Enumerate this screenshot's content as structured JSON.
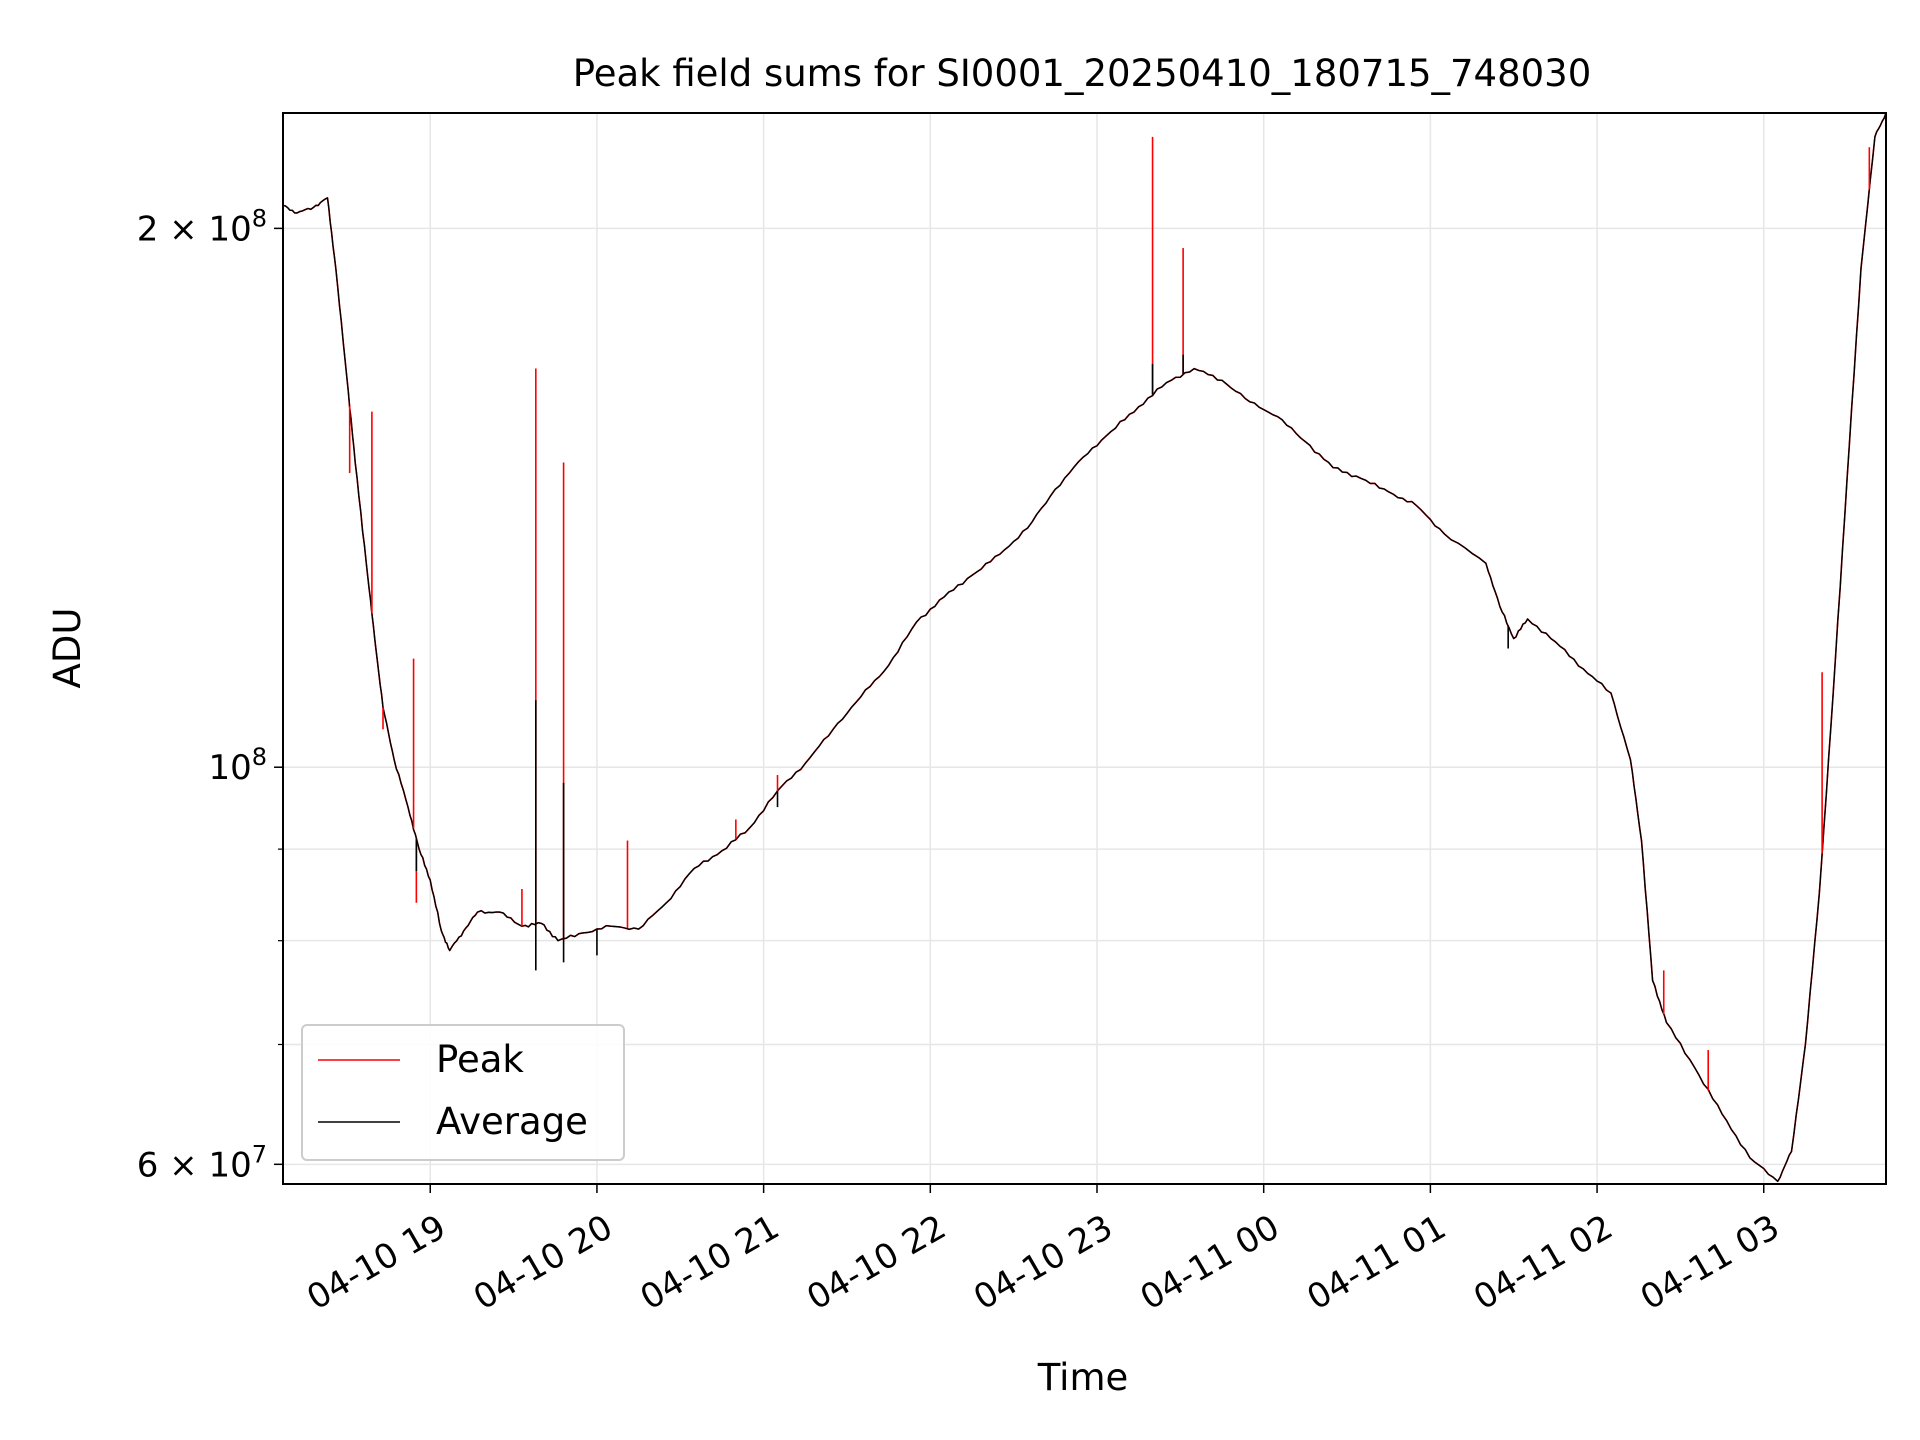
{
  "chart_data": {
    "type": "line",
    "title": "Peak field sums for SI0001_20250410_180715_748030",
    "xlabel": "Time",
    "ylabel": "ADU",
    "y_scale": "log",
    "xlim": [
      "2025-04-10 18:07",
      "2025-04-11 03:44"
    ],
    "ylim": [
      58500000,
      232000000
    ],
    "x_ticks": [
      {
        "t": "2025-04-10 19:00",
        "label": "04-10 19"
      },
      {
        "t": "2025-04-10 20:00",
        "label": "04-10 20"
      },
      {
        "t": "2025-04-10 21:00",
        "label": "04-10 21"
      },
      {
        "t": "2025-04-10 22:00",
        "label": "04-10 22"
      },
      {
        "t": "2025-04-10 23:00",
        "label": "04-10 23"
      },
      {
        "t": "2025-04-11 00:00",
        "label": "04-11 00"
      },
      {
        "t": "2025-04-11 01:00",
        "label": "04-11 01"
      },
      {
        "t": "2025-04-11 02:00",
        "label": "04-11 02"
      },
      {
        "t": "2025-04-11 03:00",
        "label": "04-11 03"
      }
    ],
    "y_major_ticks": [
      {
        "value": 60000000,
        "base": "6 × 10",
        "exp": "7"
      },
      {
        "value": 100000000,
        "base": "10",
        "exp": "8"
      },
      {
        "value": 200000000,
        "base": "2 × 10",
        "exp": "8"
      }
    ],
    "y_minor_ticks": [
      70000000,
      80000000,
      90000000
    ],
    "grid": true,
    "legend_position": "lower-left",
    "series": [
      {
        "name": "Peak",
        "color": "#ff0000",
        "points": [
          [
            "2025-04-10 18:07",
            206000000
          ],
          [
            "2025-04-10 18:12",
            204000000
          ],
          [
            "2025-04-10 18:18",
            205500000
          ],
          [
            "2025-04-10 18:23",
            208000000
          ],
          [
            "2025-04-10 18:26",
            190000000
          ],
          [
            "2025-04-10 18:30",
            165000000
          ],
          [
            "2025-04-10 18:33",
            148000000
          ],
          [
            "2025-04-10 18:37",
            130000000
          ],
          [
            "2025-04-10 18:40",
            118000000
          ],
          [
            "2025-04-10 18:43",
            108000000
          ],
          [
            "2025-04-10 18:47",
            101000000
          ],
          [
            "2025-04-10 18:52",
            95000000
          ],
          [
            "2025-04-10 18:56",
            90000000
          ],
          [
            "2025-04-10 19:00",
            86500000
          ],
          [
            "2025-04-10 19:04",
            81000000
          ],
          [
            "2025-04-10 19:07",
            79000000
          ],
          [
            "2025-04-10 19:12",
            81000000
          ],
          [
            "2025-04-10 19:17",
            83000000
          ],
          [
            "2025-04-10 19:25",
            83000000
          ],
          [
            "2025-04-10 19:33",
            81500000
          ],
          [
            "2025-04-10 19:40",
            81800000
          ],
          [
            "2025-04-10 19:46",
            80000000
          ],
          [
            "2025-04-10 19:55",
            80800000
          ],
          [
            "2025-04-10 20:05",
            81500000
          ],
          [
            "2025-04-10 20:15",
            81200000
          ],
          [
            "2025-04-10 20:25",
            84000000
          ],
          [
            "2025-04-10 20:35",
            87800000
          ],
          [
            "2025-04-10 20:45",
            89800000
          ],
          [
            "2025-04-10 20:55",
            92500000
          ],
          [
            "2025-04-10 21:05",
            97000000
          ],
          [
            "2025-04-10 21:15",
            100500000
          ],
          [
            "2025-04-10 21:25",
            105000000
          ],
          [
            "2025-04-10 21:35",
            109500000
          ],
          [
            "2025-04-10 21:45",
            114000000
          ],
          [
            "2025-04-10 21:55",
            120500000
          ],
          [
            "2025-04-10 22:05",
            124500000
          ],
          [
            "2025-04-10 22:15",
            128000000
          ],
          [
            "2025-04-10 22:25",
            131500000
          ],
          [
            "2025-04-10 22:35",
            136000000
          ],
          [
            "2025-04-10 22:45",
            143000000
          ],
          [
            "2025-04-10 22:55",
            149000000
          ],
          [
            "2025-04-10 23:05",
            154000000
          ],
          [
            "2025-04-10 23:15",
            159000000
          ],
          [
            "2025-04-10 23:25",
            164000000
          ],
          [
            "2025-04-10 23:35",
            167000000
          ],
          [
            "2025-04-10 23:45",
            164500000
          ],
          [
            "2025-04-10 23:55",
            160000000
          ],
          [
            "2025-04-11 00:05",
            157000000
          ],
          [
            "2025-04-11 00:15",
            152000000
          ],
          [
            "2025-04-11 00:25",
            147000000
          ],
          [
            "2025-04-11 00:35",
            145000000
          ],
          [
            "2025-04-11 00:45",
            142500000
          ],
          [
            "2025-04-11 00:55",
            140000000
          ],
          [
            "2025-04-11 01:05",
            135000000
          ],
          [
            "2025-04-11 01:20",
            130000000
          ],
          [
            "2025-04-11 01:25",
            123000000
          ],
          [
            "2025-04-11 01:30",
            118000000
          ],
          [
            "2025-04-11 01:35",
            121000000
          ],
          [
            "2025-04-11 01:45",
            117500000
          ],
          [
            "2025-04-11 01:55",
            113500000
          ],
          [
            "2025-04-11 02:05",
            110000000
          ],
          [
            "2025-04-11 02:12",
            101000000
          ],
          [
            "2025-04-11 02:16",
            91000000
          ],
          [
            "2025-04-11 02:20",
            76000000
          ],
          [
            "2025-04-11 02:25",
            72000000
          ],
          [
            "2025-04-11 02:35",
            68000000
          ],
          [
            "2025-04-11 02:45",
            64000000
          ],
          [
            "2025-04-11 02:55",
            60500000
          ],
          [
            "2025-04-11 03:05",
            58700000
          ],
          [
            "2025-04-11 03:10",
            61000000
          ],
          [
            "2025-04-11 03:15",
            70000000
          ],
          [
            "2025-04-11 03:20",
            85000000
          ],
          [
            "2025-04-11 03:25",
            110000000
          ],
          [
            "2025-04-11 03:30",
            145000000
          ],
          [
            "2025-04-11 03:35",
            190000000
          ],
          [
            "2025-04-11 03:40",
            225000000
          ],
          [
            "2025-04-11 03:44",
            232000000
          ]
        ],
        "spikes": [
          [
            "2025-04-10 18:31",
            146000000
          ],
          [
            "2025-04-10 18:39",
            158000000
          ],
          [
            "2025-04-10 18:43",
            105000000
          ],
          [
            "2025-04-10 18:54",
            115000000
          ],
          [
            "2025-04-10 18:55",
            84000000
          ],
          [
            "2025-04-10 19:33",
            85500000
          ],
          [
            "2025-04-10 19:38",
            167000000
          ],
          [
            "2025-04-10 19:48",
            148000000
          ],
          [
            "2025-04-10 20:11",
            91000000
          ],
          [
            "2025-04-10 20:50",
            93500000
          ],
          [
            "2025-04-10 21:05",
            99000000
          ],
          [
            "2025-04-10 23:20",
            225000000
          ],
          [
            "2025-04-10 23:31",
            195000000
          ],
          [
            "2025-04-11 02:24",
            77000000
          ],
          [
            "2025-04-11 02:40",
            69500000
          ],
          [
            "2025-04-11 03:21",
            113000000
          ],
          [
            "2025-04-11 03:38",
            222000000
          ]
        ]
      },
      {
        "name": "Average",
        "color": "#000000",
        "points": [
          [
            "2025-04-10 18:07",
            206000000
          ],
          [
            "2025-04-10 18:12",
            204000000
          ],
          [
            "2025-04-10 18:18",
            205500000
          ],
          [
            "2025-04-10 18:23",
            208000000
          ],
          [
            "2025-04-10 18:26",
            190000000
          ],
          [
            "2025-04-10 18:30",
            165000000
          ],
          [
            "2025-04-10 18:33",
            148000000
          ],
          [
            "2025-04-10 18:37",
            130000000
          ],
          [
            "2025-04-10 18:40",
            118000000
          ],
          [
            "2025-04-10 18:43",
            108000000
          ],
          [
            "2025-04-10 18:47",
            101000000
          ],
          [
            "2025-04-10 18:52",
            95000000
          ],
          [
            "2025-04-10 18:56",
            90000000
          ],
          [
            "2025-04-10 19:00",
            86500000
          ],
          [
            "2025-04-10 19:04",
            81000000
          ],
          [
            "2025-04-10 19:07",
            79000000
          ],
          [
            "2025-04-10 19:12",
            81000000
          ],
          [
            "2025-04-10 19:17",
            83000000
          ],
          [
            "2025-04-10 19:25",
            83000000
          ],
          [
            "2025-04-10 19:33",
            81500000
          ],
          [
            "2025-04-10 19:40",
            81800000
          ],
          [
            "2025-04-10 19:46",
            80000000
          ],
          [
            "2025-04-10 19:55",
            80800000
          ],
          [
            "2025-04-10 20:05",
            81500000
          ],
          [
            "2025-04-10 20:15",
            81200000
          ],
          [
            "2025-04-10 20:25",
            84000000
          ],
          [
            "2025-04-10 20:35",
            87800000
          ],
          [
            "2025-04-10 20:45",
            89800000
          ],
          [
            "2025-04-10 20:55",
            92500000
          ],
          [
            "2025-04-10 21:05",
            97000000
          ],
          [
            "2025-04-10 21:15",
            100500000
          ],
          [
            "2025-04-10 21:25",
            105000000
          ],
          [
            "2025-04-10 21:35",
            109500000
          ],
          [
            "2025-04-10 21:45",
            114000000
          ],
          [
            "2025-04-10 21:55",
            120500000
          ],
          [
            "2025-04-10 22:05",
            124500000
          ],
          [
            "2025-04-10 22:15",
            128000000
          ],
          [
            "2025-04-10 22:25",
            131500000
          ],
          [
            "2025-04-10 22:35",
            136000000
          ],
          [
            "2025-04-10 22:45",
            143000000
          ],
          [
            "2025-04-10 22:55",
            149000000
          ],
          [
            "2025-04-10 23:05",
            154000000
          ],
          [
            "2025-04-10 23:15",
            159000000
          ],
          [
            "2025-04-10 23:25",
            164000000
          ],
          [
            "2025-04-10 23:35",
            167000000
          ],
          [
            "2025-04-10 23:45",
            164500000
          ],
          [
            "2025-04-10 23:55",
            160000000
          ],
          [
            "2025-04-11 00:05",
            157000000
          ],
          [
            "2025-04-11 00:15",
            152000000
          ],
          [
            "2025-04-11 00:25",
            147000000
          ],
          [
            "2025-04-11 00:35",
            145000000
          ],
          [
            "2025-04-11 00:45",
            142500000
          ],
          [
            "2025-04-11 00:55",
            140000000
          ],
          [
            "2025-04-11 01:05",
            135000000
          ],
          [
            "2025-04-11 01:20",
            130000000
          ],
          [
            "2025-04-11 01:25",
            123000000
          ],
          [
            "2025-04-11 01:30",
            118000000
          ],
          [
            "2025-04-11 01:35",
            121000000
          ],
          [
            "2025-04-11 01:45",
            117500000
          ],
          [
            "2025-04-11 01:55",
            113500000
          ],
          [
            "2025-04-11 02:05",
            110000000
          ],
          [
            "2025-04-11 02:12",
            101000000
          ],
          [
            "2025-04-11 02:16",
            91000000
          ],
          [
            "2025-04-11 02:20",
            76000000
          ],
          [
            "2025-04-11 02:25",
            72000000
          ],
          [
            "2025-04-11 02:35",
            68000000
          ],
          [
            "2025-04-11 02:45",
            64000000
          ],
          [
            "2025-04-11 02:55",
            60500000
          ],
          [
            "2025-04-11 03:05",
            58700000
          ],
          [
            "2025-04-11 03:10",
            61000000
          ],
          [
            "2025-04-11 03:15",
            70000000
          ],
          [
            "2025-04-11 03:20",
            85000000
          ],
          [
            "2025-04-11 03:25",
            110000000
          ],
          [
            "2025-04-11 03:30",
            145000000
          ],
          [
            "2025-04-11 03:35",
            190000000
          ],
          [
            "2025-04-11 03:40",
            225000000
          ],
          [
            "2025-04-11 03:44",
            232000000
          ]
        ],
        "spikes": [
          [
            "2025-04-10 18:55",
            87500000
          ],
          [
            "2025-04-10 19:38",
            109000000
          ],
          [
            "2025-04-10 19:48",
            98000000
          ],
          [
            "2025-04-10 19:38",
            77000000
          ],
          [
            "2025-04-10 19:48",
            77800000
          ],
          [
            "2025-04-10 20:00",
            78500000
          ],
          [
            "2025-04-10 21:05",
            95000000
          ],
          [
            "2025-04-10 23:20",
            168000000
          ],
          [
            "2025-04-10 23:31",
            170000000
          ],
          [
            "2025-04-11 01:28",
            116500000
          ]
        ]
      }
    ]
  }
}
